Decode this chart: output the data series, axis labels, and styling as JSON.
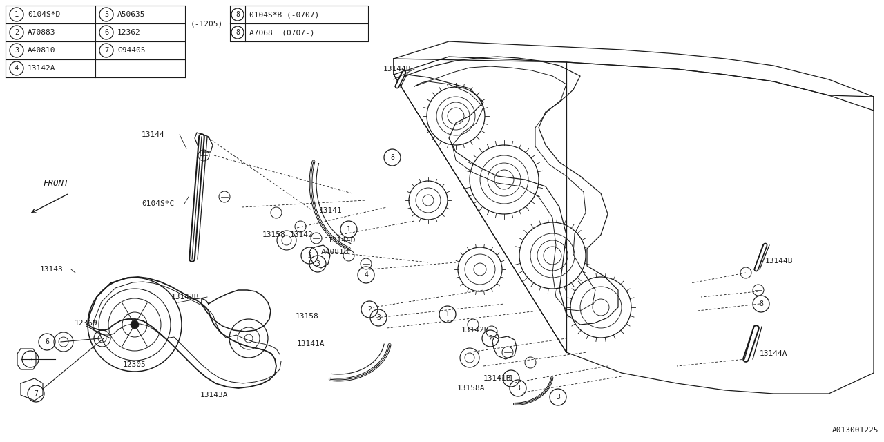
{
  "bg_color": "#ffffff",
  "line_color": "#1a1a1a",
  "part_number_ref": "A013001225",
  "legend_left": [
    [
      1,
      "0104S*D"
    ],
    [
      2,
      "A70883"
    ],
    [
      3,
      "A40810"
    ],
    [
      4,
      "13142A"
    ]
  ],
  "legend_right": [
    [
      5,
      "A50635"
    ],
    [
      6,
      "12362"
    ],
    [
      7,
      "G94405"
    ]
  ],
  "item8_top": "0104S*B (-0707)",
  "item8_bot": "A7068  (0707-)",
  "date_note": "(-1205)"
}
